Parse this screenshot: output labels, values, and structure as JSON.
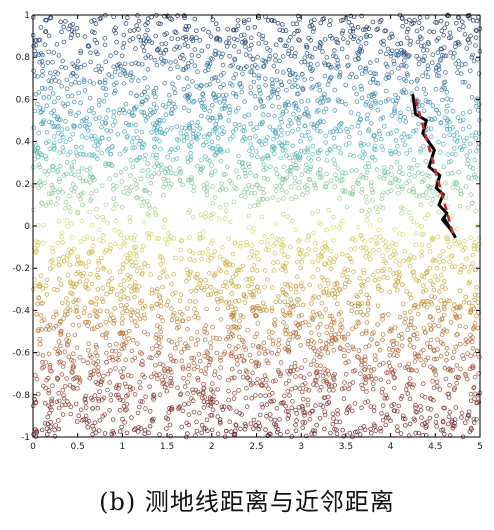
{
  "caption": "(b) 测地线距离与近邻距离",
  "chart_data": {
    "type": "scatter",
    "xlim": [
      0,
      5
    ],
    "ylim": [
      -1,
      1
    ],
    "x_ticks": [
      "0",
      "0.5",
      "1",
      "1.5",
      "2",
      "2.5",
      "3",
      "3.5",
      "4",
      "4.5",
      "5"
    ],
    "y_ticks": [
      "1",
      "0.8",
      "0.6",
      "0.4",
      "0.2",
      "0",
      "-0.2",
      "-0.4",
      "-0.6",
      "-0.8",
      "-1"
    ],
    "colormap": {
      "stops": [
        {
          "y": -1.0,
          "color": "#6a1f2e"
        },
        {
          "y": -0.6,
          "color": "#b5603a"
        },
        {
          "y": -0.3,
          "color": "#c9a33a"
        },
        {
          "y": 0.0,
          "color": "#d6df6a"
        },
        {
          "y": 0.1,
          "color": "#9fd090"
        },
        {
          "y": 0.4,
          "color": "#4fb5c0"
        },
        {
          "y": 0.7,
          "color": "#3a74a8"
        },
        {
          "y": 1.0,
          "color": "#1a2a5a"
        }
      ]
    },
    "point_density": {
      "count_estimate": 4500,
      "sparse_band_y": [
        -0.05,
        0.15
      ]
    },
    "series": [
      {
        "kind": "neighbor-path",
        "color": "#000000",
        "style": "solid",
        "points": [
          [
            4.25,
            0.62
          ],
          [
            4.28,
            0.53
          ],
          [
            4.4,
            0.5
          ],
          [
            4.36,
            0.44
          ],
          [
            4.49,
            0.36
          ],
          [
            4.43,
            0.28
          ],
          [
            4.55,
            0.24
          ],
          [
            4.51,
            0.18
          ],
          [
            4.59,
            0.15
          ],
          [
            4.54,
            0.1
          ],
          [
            4.63,
            0.06
          ],
          [
            4.58,
            0.03
          ],
          [
            4.66,
            -0.01
          ],
          [
            4.61,
            0.03
          ],
          [
            4.72,
            -0.05
          ]
        ]
      },
      {
        "kind": "geodesic",
        "color": "#c8282e",
        "style": "dashed",
        "points": [
          [
            4.28,
            0.6
          ],
          [
            4.7,
            -0.04
          ]
        ]
      }
    ]
  }
}
